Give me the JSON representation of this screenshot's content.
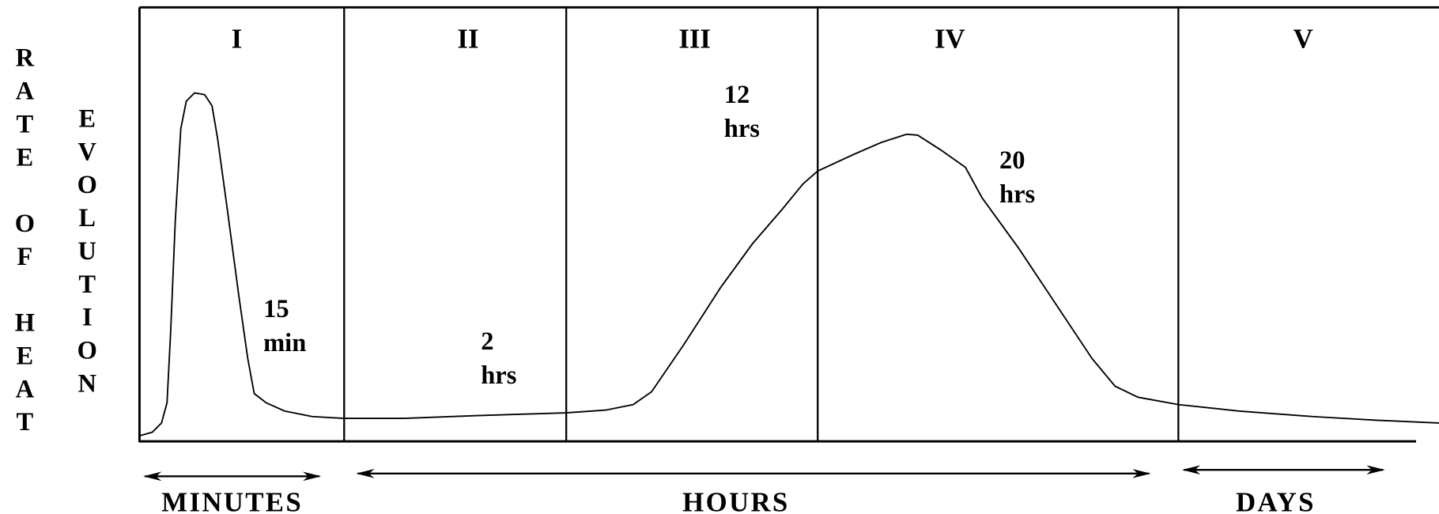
{
  "stages": [
    "I",
    "II",
    "III",
    "IV",
    "V"
  ],
  "y_axis": {
    "line1": "RATE OF HEAT",
    "line2": "EVOLUTION"
  },
  "annotations": [
    {
      "top": "15",
      "bottom": "min"
    },
    {
      "top": "2",
      "bottom": "hrs"
    },
    {
      "top": "12",
      "bottom": "hrs"
    },
    {
      "top": "20",
      "bottom": "hrs"
    }
  ],
  "time_scales": [
    "MINUTES",
    "HOURS",
    "DAYS"
  ]
}
